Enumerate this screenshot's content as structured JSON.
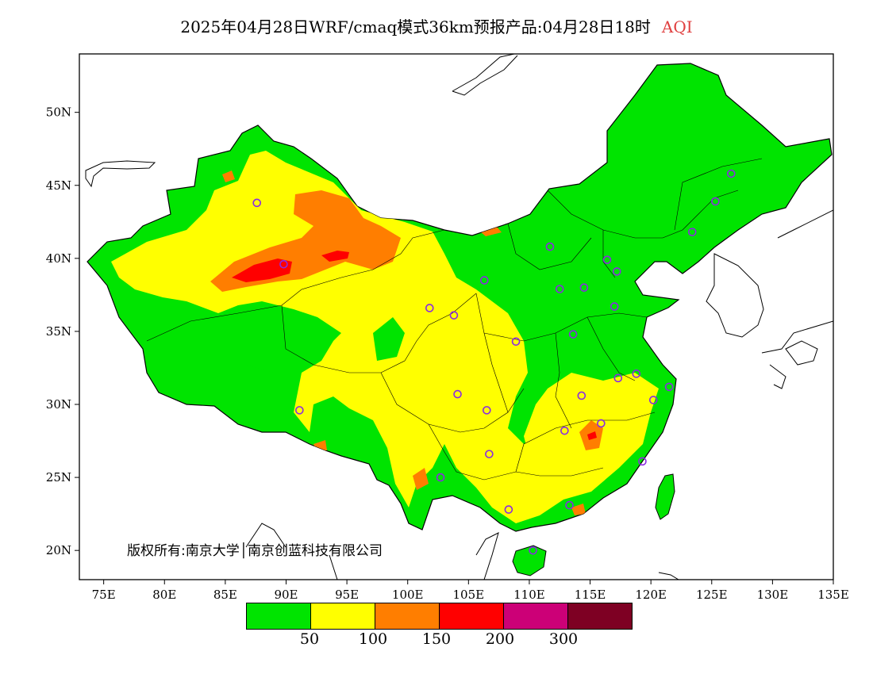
{
  "title": {
    "text": "2025年04月28日WRF/cmaq模式36km预报产品:04月28日18时",
    "aqi_label": "AQI",
    "aqi_color": "#e04040"
  },
  "map": {
    "lon_range": [
      73,
      135
    ],
    "lat_range": [
      18,
      54
    ],
    "x_ticks": [
      "75E",
      "80E",
      "85E",
      "90E",
      "95E",
      "100E",
      "105E",
      "110E",
      "115E",
      "120E",
      "125E",
      "130E",
      "135E"
    ],
    "y_ticks": [
      "50N",
      "45N",
      "40N",
      "35N",
      "30N",
      "25N",
      "20N"
    ]
  },
  "copyright": "版权所有:南京大学│南京创蓝科技有限公司",
  "legend": {
    "colors": [
      "#00e400",
      "#ffff00",
      "#ff7e00",
      "#ff0000",
      "#cc0077",
      "#7e0023"
    ],
    "labels": [
      "50",
      "100",
      "150",
      "200",
      "300"
    ]
  },
  "stations": [
    [
      87.6,
      43.8
    ],
    [
      91.1,
      29.6
    ],
    [
      101.8,
      36.6
    ],
    [
      103.8,
      36.1
    ],
    [
      106.3,
      38.5
    ],
    [
      111.7,
      40.8
    ],
    [
      116.4,
      39.9
    ],
    [
      117.2,
      39.1
    ],
    [
      114.5,
      38.0
    ],
    [
      112.5,
      37.9
    ],
    [
      117.0,
      36.7
    ],
    [
      113.6,
      34.8
    ],
    [
      108.9,
      34.3
    ],
    [
      104.1,
      30.7
    ],
    [
      106.5,
      29.6
    ],
    [
      106.7,
      26.6
    ],
    [
      102.7,
      25.0
    ],
    [
      108.3,
      22.8
    ],
    [
      113.3,
      23.1
    ],
    [
      110.3,
      20.0
    ],
    [
      112.9,
      28.2
    ],
    [
      115.9,
      28.7
    ],
    [
      114.3,
      30.6
    ],
    [
      117.3,
      31.8
    ],
    [
      118.8,
      32.1
    ],
    [
      120.2,
      30.3
    ],
    [
      121.5,
      31.2
    ],
    [
      119.3,
      26.1
    ],
    [
      123.4,
      41.8
    ],
    [
      125.3,
      43.9
    ],
    [
      126.6,
      45.8
    ],
    [
      89.8,
      39.6
    ]
  ]
}
